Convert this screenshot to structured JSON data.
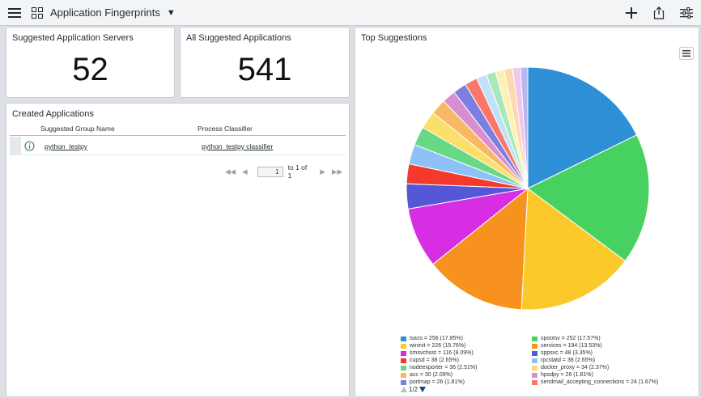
{
  "header": {
    "title": "Application Fingerprints"
  },
  "cards": {
    "servers": {
      "title": "Suggested Application Servers",
      "value": "52"
    },
    "applications": {
      "title": "All Suggested Applications",
      "value": "541"
    }
  },
  "created": {
    "title": "Created Applications",
    "columns": [
      "Suggested Group Name",
      "Process Classifier"
    ],
    "rows": [
      {
        "group": "python_testpy",
        "classifier": "python_testpy classifier"
      }
    ],
    "pager": {
      "page": "1",
      "of_text": "to 1 of 1"
    }
  },
  "top": {
    "title": "Top Suggestions",
    "legend_page": "1/2"
  },
  "chart_data": {
    "type": "pie",
    "title": "Top Suggestions",
    "slices": [
      {
        "label": "lsass = 256 (17.85%)",
        "name": "lsass",
        "value": 256,
        "color": "#2e8fd6"
      },
      {
        "label": "spoolsv = 252 (17.57%)",
        "name": "spoolsv",
        "value": 252,
        "color": "#46d160"
      },
      {
        "label": "wininit = 226 (15.76%)",
        "name": "wininit",
        "value": 226,
        "color": "#fbc92a"
      },
      {
        "label": "services = 194 (13.53%)",
        "name": "services",
        "value": 194,
        "color": "#f7921e"
      },
      {
        "label": "smsvchost = 116 (8.09%)",
        "name": "smsvchost",
        "value": 116,
        "color": "#d72ee4"
      },
      {
        "label": "sppsvc = 48 (3.35%)",
        "name": "sppsvc",
        "value": 48,
        "color": "#5457d6"
      },
      {
        "label": "cupsd = 38 (2.65%)",
        "name": "cupsd",
        "value": 38,
        "color": "#f5392d"
      },
      {
        "label": "rpcstatd = 38 (2.65%)",
        "name": "rpcstatd",
        "value": 38,
        "color": "#8ec1f7"
      },
      {
        "label": "nodeexporter = 36 (2.51%)",
        "name": "nodeexporter",
        "value": 36,
        "color": "#68d887"
      },
      {
        "label": "docker_proxy = 34 (2.37%)",
        "name": "docker_proxy",
        "value": 34,
        "color": "#fbdf6a"
      },
      {
        "label": "acc = 30 (2.09%)",
        "name": "acc",
        "value": 30,
        "color": "#f9b863"
      },
      {
        "label": "hpsdpy = 26 (1.81%)",
        "name": "hpsdpy",
        "value": 26,
        "color": "#d98ed0"
      },
      {
        "label": "portmap = 26 (1.81%)",
        "name": "portmap",
        "value": 26,
        "color": "#7d7fe0"
      },
      {
        "label": "sendmail_accepting_connections = 24 (1.67%)",
        "name": "sendmail_accepting_connections",
        "value": 24,
        "color": "#f9786a"
      },
      {
        "name": "",
        "value": 20,
        "color": "#bfe2f8"
      },
      {
        "name": "",
        "value": 18,
        "color": "#a9e8bb"
      },
      {
        "name": "",
        "value": 17,
        "color": "#fdf0b0"
      },
      {
        "name": "",
        "value": 16,
        "color": "#fcd9ae"
      },
      {
        "name": "",
        "value": 15,
        "color": "#f1c5ec"
      },
      {
        "name": "",
        "value": 14,
        "color": "#b6b8ef"
      }
    ]
  }
}
